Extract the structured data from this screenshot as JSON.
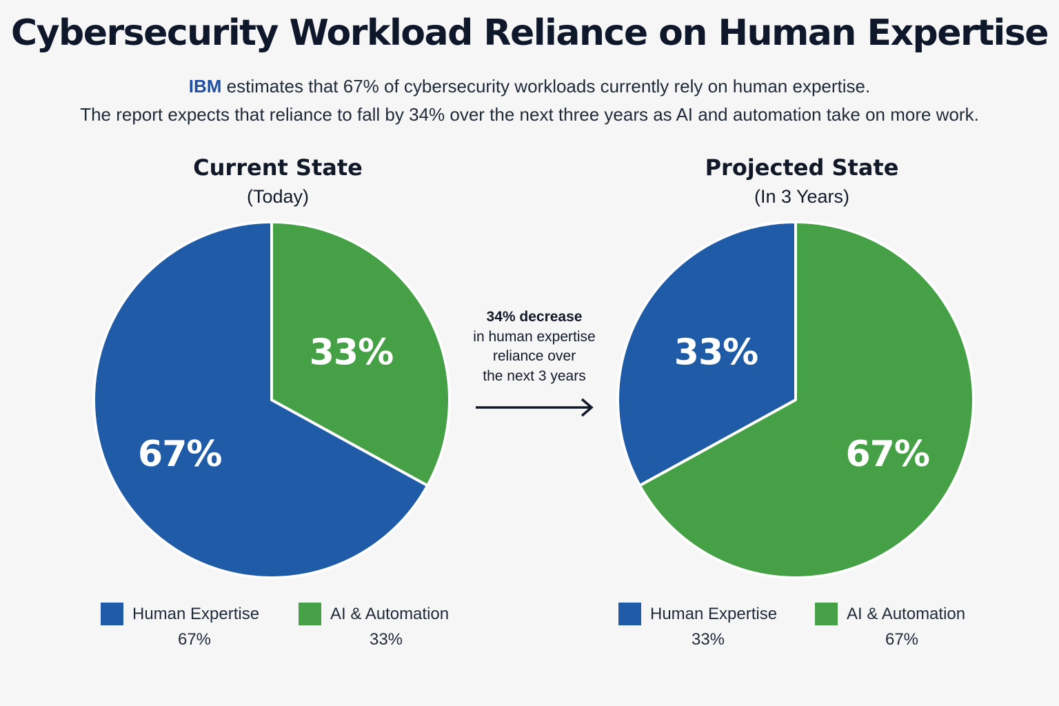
{
  "title": "Cybersecurity Workload Reliance on Human Expertise",
  "subtitle": {
    "brand": "IBM",
    "line1_rest": " estimates that 67% of cybersecurity workloads currently rely on human expertise.",
    "line2": "The report expects that reliance to fall by 34% over the next three years as AI and automation take on more work."
  },
  "colors": {
    "human": "#1f5ba6",
    "ai": "#46a046",
    "brand": "#1e4fa3",
    "divider": "#ffffff"
  },
  "callout": {
    "headline": "34% decrease",
    "line1": "in human expertise",
    "line2": "reliance over",
    "line3": "the next 3 years",
    "icon": "arrow-right-icon"
  },
  "chart_data": [
    {
      "type": "pie",
      "title": "Current State",
      "subtitle": "(Today)",
      "categories": [
        "Human Expertise",
        "AI & Automation"
      ],
      "values": [
        67,
        33
      ],
      "value_labels": [
        "67%",
        "33%"
      ],
      "legend": [
        {
          "name": "Human Expertise",
          "value": "67%"
        },
        {
          "name": "AI & Automation",
          "value": "33%"
        }
      ],
      "legend_placement": "bottom"
    },
    {
      "type": "pie",
      "title": "Projected State",
      "subtitle": "(In 3 Years)",
      "categories": [
        "Human Expertise",
        "AI & Automation"
      ],
      "values": [
        33,
        67
      ],
      "value_labels": [
        "33%",
        "67%"
      ],
      "legend": [
        {
          "name": "Human Expertise",
          "value": "33%"
        },
        {
          "name": "AI & Automation",
          "value": "67%"
        }
      ],
      "legend_placement": "bottom"
    }
  ]
}
